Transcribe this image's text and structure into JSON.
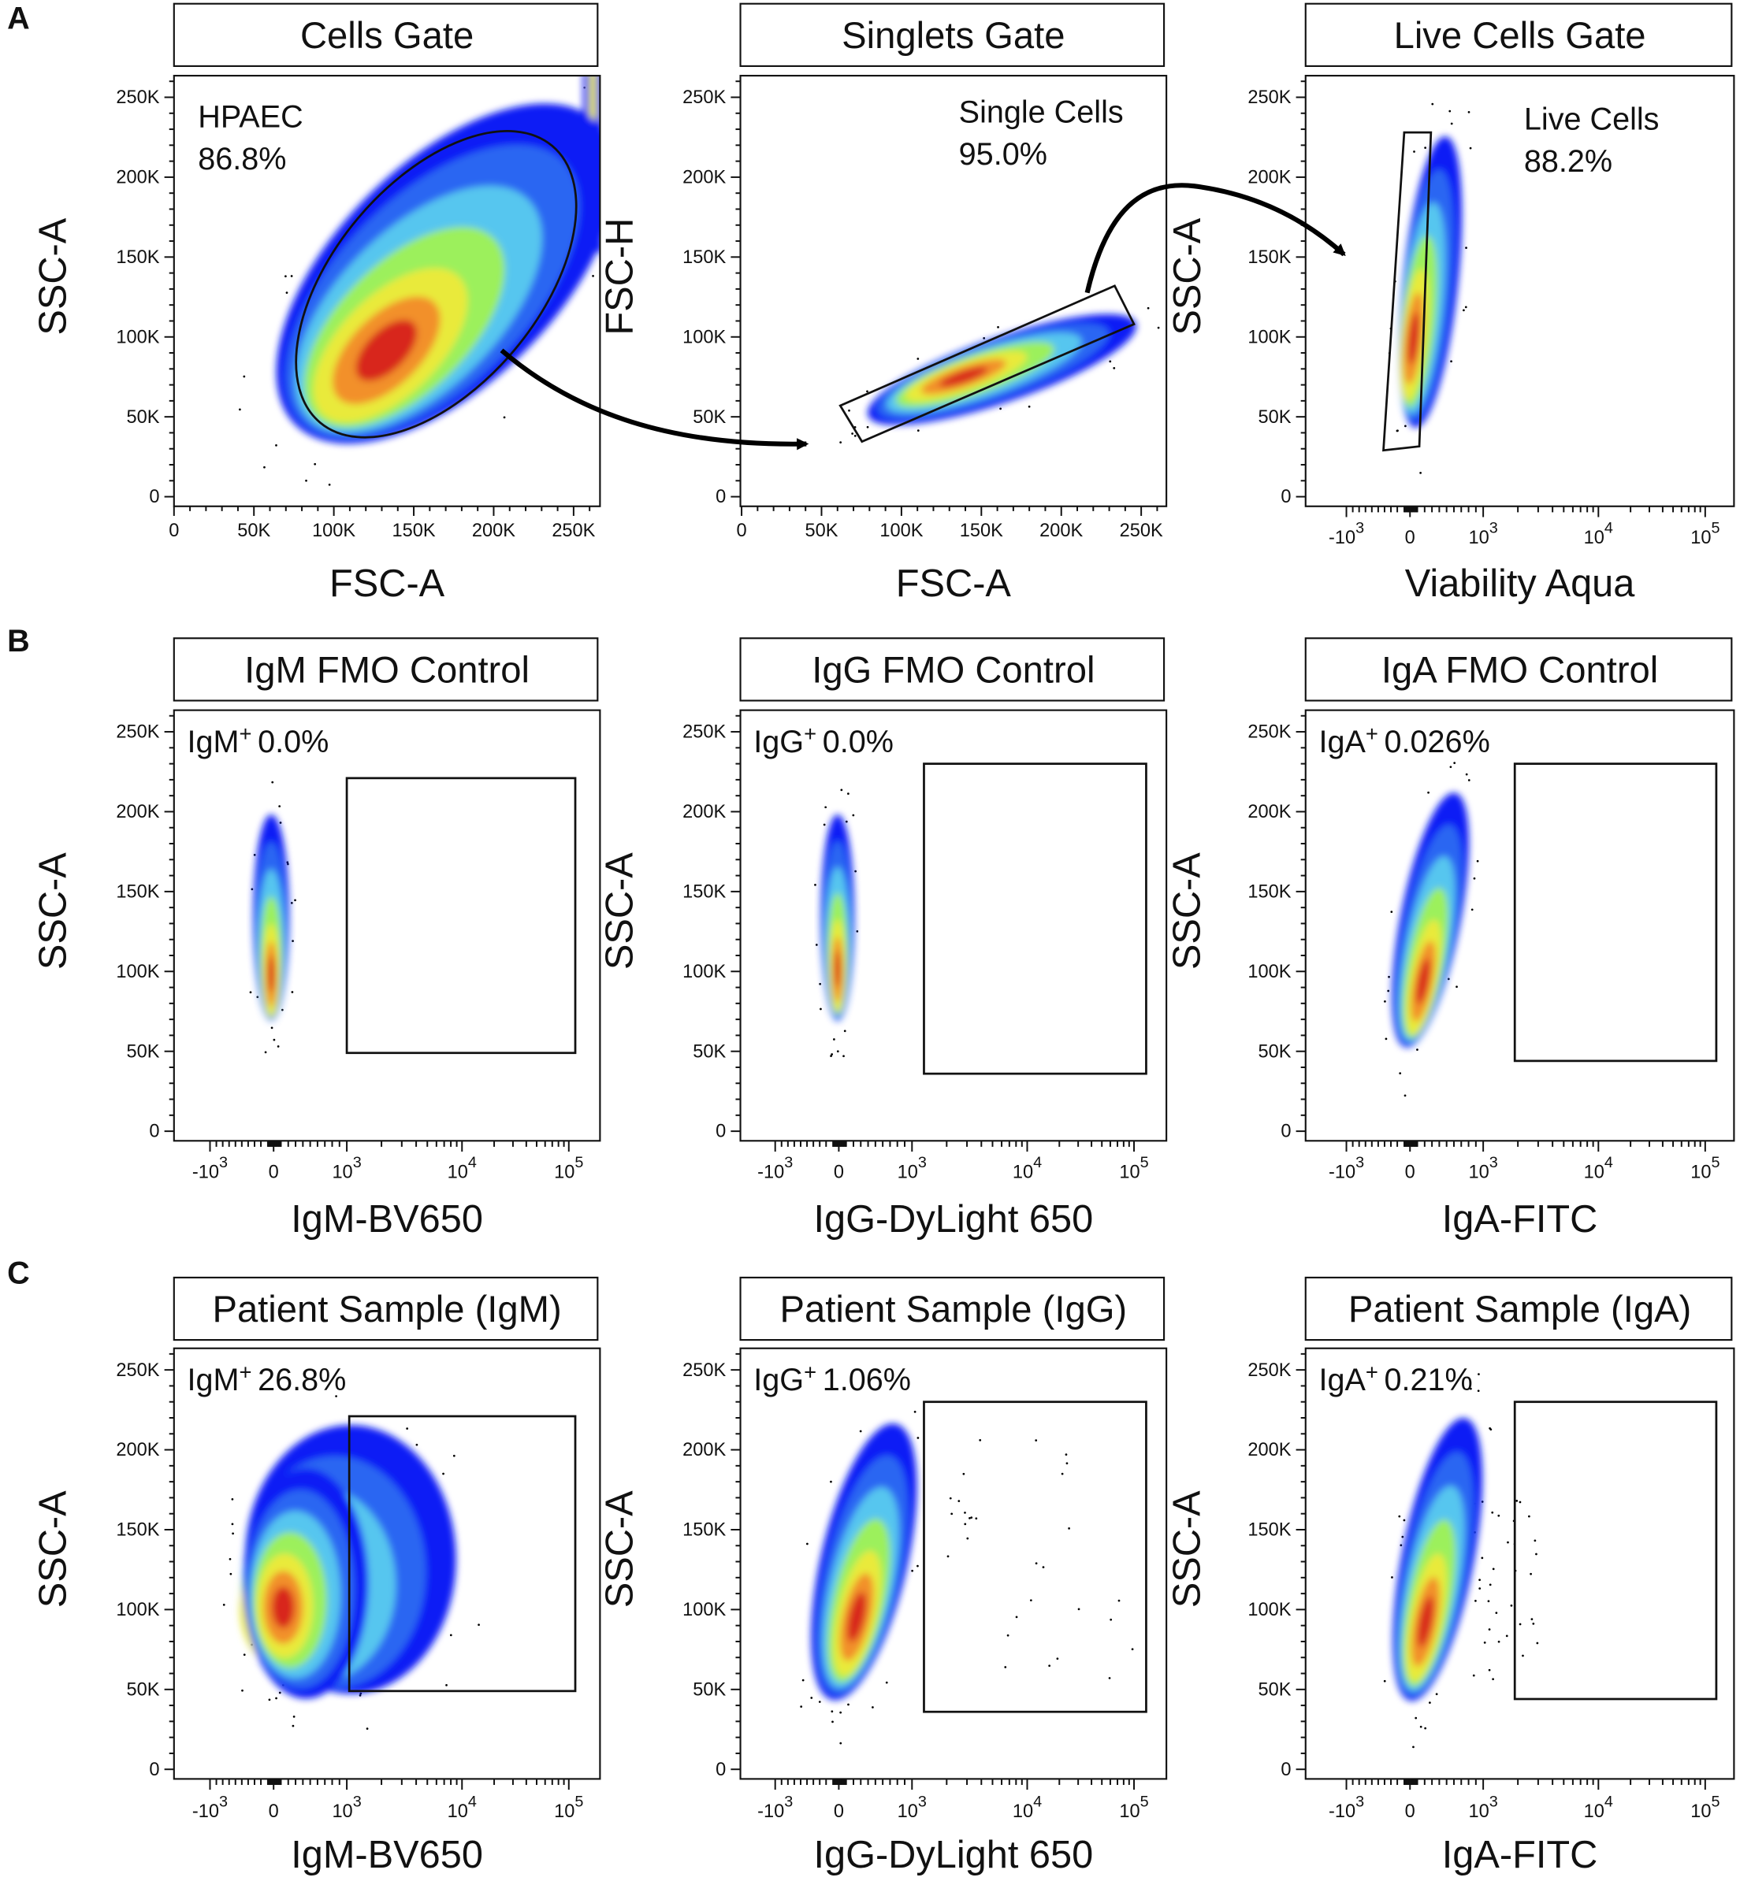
{
  "figure": {
    "row_labels": [
      "A",
      "B",
      "C"
    ],
    "colors": {
      "density_scale": [
        "#0a1af5",
        "#2a66f2",
        "#57c6ef",
        "#9cf05c",
        "#e9ea3a",
        "#f2902c",
        "#d8261a"
      ],
      "gate": "#111111",
      "arrow": "#000000"
    }
  },
  "chart_data": [
    {
      "id": "A1",
      "row": "A",
      "type": "scatter-density",
      "title": "Cells Gate",
      "xlabel": "FSC-A",
      "ylabel": "SSC-A",
      "xscale": "linear",
      "yscale": "linear",
      "xlim": [
        0,
        262144
      ],
      "ylim": [
        0,
        262144
      ],
      "xticks": [
        "0",
        "50K",
        "100K",
        "150K",
        "200K",
        "250K"
      ],
      "yticks": [
        "0",
        "50K",
        "100K",
        "150K",
        "200K",
        "250K"
      ],
      "annotation": {
        "lines": [
          "HPAEC",
          "86.8%"
        ]
      },
      "gate": {
        "shape": "ellipse",
        "center": [
          164000,
          133000
        ],
        "semi_axes": [
          113000,
          64000
        ],
        "angle_deg": 50
      },
      "density_peak": [
        140000,
        95000
      ]
    },
    {
      "id": "A2",
      "row": "A",
      "type": "scatter-density",
      "title": "Singlets Gate",
      "xlabel": "FSC-A",
      "ylabel": "FSC-H",
      "xscale": "linear",
      "yscale": "linear",
      "xlim": [
        0,
        262144
      ],
      "ylim": [
        0,
        262144
      ],
      "xticks": [
        "0",
        "50K",
        "100K",
        "150K",
        "200K",
        "250K"
      ],
      "yticks": [
        "0",
        "50K",
        "100K",
        "150K",
        "200K",
        "250K"
      ],
      "annotation": {
        "lines": [
          "Single Cells",
          "95.0%"
        ]
      },
      "gate": {
        "shape": "polygon",
        "points": [
          [
            61700,
            57000
          ],
          [
            75300,
            34500
          ],
          [
            245500,
            108000
          ],
          [
            233400,
            132000
          ]
        ]
      },
      "density_peak": [
        140000,
        77000
      ]
    },
    {
      "id": "A3",
      "row": "A",
      "type": "scatter-density",
      "title": "Live Cells Gate",
      "xlabel": "Viability Aqua",
      "ylabel": "SSC-A",
      "xscale": "biexponential",
      "yscale": "linear",
      "ylim": [
        0,
        262144
      ],
      "xticks": [
        {
          "base": "-10",
          "exp": "3"
        },
        {
          "base": "0",
          "exp": ""
        },
        {
          "base": "10",
          "exp": "3"
        },
        {
          "base": "10",
          "exp": "4"
        },
        {
          "base": "10",
          "exp": "5"
        }
      ],
      "yticks": [
        "0",
        "50K",
        "100K",
        "150K",
        "200K",
        "250K"
      ],
      "annotation": {
        "lines": [
          "Live Cells",
          "88.2%"
        ]
      },
      "gate": {
        "shape": "polygon",
        "points": [
          [
            -91,
            228000
          ],
          [
            286,
            228000
          ],
          [
            127,
            31500
          ],
          [
            -418,
            29000
          ]
        ]
      },
      "density_peak": [
        60,
        100000
      ]
    },
    {
      "id": "B1",
      "row": "B",
      "type": "scatter-density",
      "title": "IgM FMO Control",
      "xlabel": "IgM-BV650",
      "ylabel": "SSC-A",
      "xscale": "biexponential",
      "yscale": "linear",
      "ylim": [
        0,
        262144
      ],
      "xticks": [
        {
          "base": "-10",
          "exp": "3"
        },
        {
          "base": "0",
          "exp": ""
        },
        {
          "base": "10",
          "exp": "3"
        },
        {
          "base": "10",
          "exp": "4"
        },
        {
          "base": "10",
          "exp": "5"
        }
      ],
      "yticks": [
        "0",
        "50K",
        "100K",
        "150K",
        "200K",
        "250K"
      ],
      "annotation": {
        "marker": "IgM",
        "sup": "+",
        "value": "0.0%"
      },
      "gate": {
        "shape": "rectangle",
        "x": [
          1000,
          115000
        ],
        "y": [
          49000,
          221000
        ]
      },
      "density_peak": [
        0,
        100000
      ]
    },
    {
      "id": "B2",
      "row": "B",
      "type": "scatter-density",
      "title": "IgG FMO Control",
      "xlabel": "IgG-DyLight 650",
      "ylabel": "SSC-A",
      "xscale": "biexponential",
      "yscale": "linear",
      "ylim": [
        0,
        262144
      ],
      "xticks": [
        {
          "base": "-10",
          "exp": "3"
        },
        {
          "base": "0",
          "exp": ""
        },
        {
          "base": "10",
          "exp": "3"
        },
        {
          "base": "10",
          "exp": "4"
        },
        {
          "base": "10",
          "exp": "5"
        }
      ],
      "yticks": [
        "0",
        "50K",
        "100K",
        "150K",
        "200K",
        "250K"
      ],
      "annotation": {
        "marker": "IgG",
        "sup": "+",
        "value": "0.0%"
      },
      "gate": {
        "shape": "rectangle",
        "x": [
          1270,
          130000
        ],
        "y": [
          36000,
          230000
        ]
      },
      "density_peak": [
        0,
        100000
      ]
    },
    {
      "id": "B3",
      "row": "B",
      "type": "scatter-density",
      "title": "IgA FMO Control",
      "xlabel": "IgA-FITC",
      "ylabel": "SSC-A",
      "xscale": "biexponential",
      "yscale": "linear",
      "ylim": [
        0,
        262144
      ],
      "xticks": [
        {
          "base": "-10",
          "exp": "3"
        },
        {
          "base": "0",
          "exp": ""
        },
        {
          "base": "10",
          "exp": "3"
        },
        {
          "base": "10",
          "exp": "4"
        },
        {
          "base": "10",
          "exp": "5"
        }
      ],
      "yticks": [
        "0",
        "50K",
        "100K",
        "150K",
        "200K",
        "250K"
      ],
      "annotation": {
        "marker": "IgA",
        "sup": "+",
        "value": "0.026%"
      },
      "gate": {
        "shape": "rectangle",
        "x": [
          1880,
          127000
        ],
        "y": [
          44000,
          230000
        ]
      },
      "density_peak": [
        180,
        97000
      ]
    },
    {
      "id": "C1",
      "row": "C",
      "type": "scatter-density",
      "title": "Patient Sample (IgM)",
      "xlabel": "IgM-BV650",
      "ylabel": "SSC-A",
      "xscale": "biexponential",
      "yscale": "linear",
      "ylim": [
        0,
        262144
      ],
      "xticks": [
        {
          "base": "-10",
          "exp": "3"
        },
        {
          "base": "0",
          "exp": ""
        },
        {
          "base": "10",
          "exp": "3"
        },
        {
          "base": "10",
          "exp": "4"
        },
        {
          "base": "10",
          "exp": "5"
        }
      ],
      "yticks": [
        "0",
        "50K",
        "100K",
        "150K",
        "200K",
        "250K"
      ],
      "annotation": {
        "marker": "IgM",
        "sup": "+",
        "value": "26.8%"
      },
      "gate": {
        "shape": "rectangle",
        "x": [
          1050,
          115000
        ],
        "y": [
          49000,
          221000
        ]
      },
      "density_peak": [
        120,
        95000
      ]
    },
    {
      "id": "C2",
      "row": "C",
      "type": "scatter-density",
      "title": "Patient Sample (IgG)",
      "xlabel": "IgG-DyLight 650",
      "ylabel": "SSC-A",
      "xscale": "biexponential",
      "yscale": "linear",
      "ylim": [
        0,
        262144
      ],
      "xticks": [
        {
          "base": "-10",
          "exp": "3"
        },
        {
          "base": "0",
          "exp": ""
        },
        {
          "base": "10",
          "exp": "3"
        },
        {
          "base": "10",
          "exp": "4"
        },
        {
          "base": "10",
          "exp": "5"
        }
      ],
      "yticks": [
        "0",
        "50K",
        "100K",
        "150K",
        "200K",
        "250K"
      ],
      "annotation": {
        "marker": "IgG",
        "sup": "+",
        "value": "1.06%"
      },
      "gate": {
        "shape": "rectangle",
        "x": [
          1270,
          130000
        ],
        "y": [
          36000,
          230000
        ]
      },
      "density_peak": [
        260,
        97000
      ]
    },
    {
      "id": "C3",
      "row": "C",
      "type": "scatter-density",
      "title": "Patient Sample (IgA)",
      "xlabel": "IgA-FITC",
      "ylabel": "SSC-A",
      "xscale": "biexponential",
      "yscale": "linear",
      "ylim": [
        0,
        262144
      ],
      "xticks": [
        {
          "base": "-10",
          "exp": "3"
        },
        {
          "base": "0",
          "exp": ""
        },
        {
          "base": "10",
          "exp": "3"
        },
        {
          "base": "10",
          "exp": "4"
        },
        {
          "base": "10",
          "exp": "5"
        }
      ],
      "yticks": [
        "0",
        "50K",
        "100K",
        "150K",
        "200K",
        "250K"
      ],
      "annotation": {
        "marker": "IgA",
        "sup": "+",
        "value": "0.21%"
      },
      "gate": {
        "shape": "rectangle",
        "x": [
          1880,
          127000
        ],
        "y": [
          44000,
          230000
        ]
      },
      "density_peak": [
        200,
        95000
      ]
    }
  ]
}
